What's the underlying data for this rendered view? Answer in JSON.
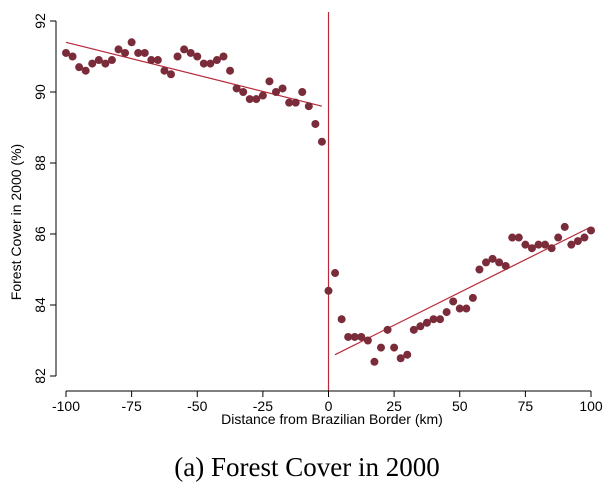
{
  "caption": "(a) Forest Cover in 2000",
  "chart_data": {
    "type": "scatter",
    "title": "",
    "xlabel": "Distance from Brazilian Border (km)",
    "ylabel": "Forest Cover in 2000 (%)",
    "xlim": [
      -100,
      100
    ],
    "ylim": [
      82,
      92
    ],
    "x_ticks": [
      -100,
      -75,
      -50,
      -25,
      0,
      25,
      50,
      75,
      100
    ],
    "y_ticks": [
      82,
      84,
      86,
      88,
      90,
      92
    ],
    "x_tick_labels": [
      "-100",
      "-75",
      "-50",
      "-25",
      "0",
      "25",
      "50",
      "75",
      "100"
    ],
    "y_tick_labels": [
      "82",
      "84",
      "86",
      "88",
      "90",
      "92"
    ],
    "grid": false,
    "colors": {
      "points": "#7b2c3a",
      "lines": "#b8293a",
      "cutoff": "#b8293a",
      "axis": "#000000"
    },
    "cutoff_x": 0,
    "series": [
      {
        "points": [
          [
            -100,
            91.1
          ],
          [
            -97.5,
            91.0
          ],
          [
            -95,
            90.7
          ],
          [
            -92.5,
            90.6
          ],
          [
            -90,
            90.8
          ],
          [
            -87.5,
            90.9
          ],
          [
            -85,
            90.8
          ],
          [
            -82.5,
            90.9
          ],
          [
            -80,
            91.2
          ],
          [
            -77.5,
            91.1
          ],
          [
            -75,
            91.4
          ],
          [
            -72.5,
            91.1
          ],
          [
            -70,
            91.1
          ],
          [
            -67.5,
            90.9
          ],
          [
            -65,
            90.9
          ],
          [
            -62.5,
            90.6
          ],
          [
            -60,
            90.5
          ],
          [
            -57.5,
            91.0
          ],
          [
            -55,
            91.2
          ],
          [
            -52.5,
            91.1
          ],
          [
            -50,
            91.0
          ],
          [
            -47.5,
            90.8
          ],
          [
            -45,
            90.8
          ],
          [
            -42.5,
            90.9
          ],
          [
            -40,
            91.0
          ],
          [
            -37.5,
            90.6
          ],
          [
            -35,
            90.1
          ],
          [
            -32.5,
            90.0
          ],
          [
            -30,
            89.8
          ],
          [
            -27.5,
            89.8
          ],
          [
            -25,
            89.9
          ],
          [
            -22.5,
            90.3
          ],
          [
            -20,
            90.0
          ],
          [
            -17.5,
            90.1
          ],
          [
            -15,
            89.7
          ],
          [
            -12.5,
            89.7
          ],
          [
            -10,
            90.0
          ],
          [
            -7.5,
            89.6
          ],
          [
            -5,
            89.1
          ],
          [
            -2.5,
            88.6
          ]
        ]
      },
      {
        "points": [
          [
            0,
            84.4
          ],
          [
            2.5,
            84.9
          ],
          [
            5,
            83.6
          ],
          [
            7.5,
            83.1
          ],
          [
            10,
            83.1
          ],
          [
            12.5,
            83.1
          ],
          [
            15,
            83.0
          ],
          [
            17.5,
            82.4
          ],
          [
            20,
            82.8
          ],
          [
            22.5,
            83.3
          ],
          [
            25,
            82.8
          ],
          [
            27.5,
            82.5
          ],
          [
            30,
            82.6
          ],
          [
            32.5,
            83.3
          ],
          [
            35,
            83.4
          ],
          [
            37.5,
            83.5
          ],
          [
            40,
            83.6
          ],
          [
            42.5,
            83.6
          ],
          [
            45,
            83.8
          ],
          [
            47.5,
            84.1
          ],
          [
            50,
            83.9
          ],
          [
            52.5,
            83.9
          ],
          [
            55,
            84.2
          ],
          [
            57.5,
            85.0
          ],
          [
            60,
            85.2
          ],
          [
            62.5,
            85.3
          ],
          [
            65,
            85.2
          ],
          [
            67.5,
            85.1
          ],
          [
            70,
            85.9
          ],
          [
            72.5,
            85.9
          ],
          [
            75,
            85.7
          ],
          [
            77.5,
            85.6
          ],
          [
            80,
            85.7
          ],
          [
            82.5,
            85.7
          ],
          [
            85,
            85.6
          ],
          [
            87.5,
            85.9
          ],
          [
            90,
            86.2
          ],
          [
            92.5,
            85.7
          ],
          [
            95,
            85.8
          ],
          [
            97.5,
            85.9
          ],
          [
            100,
            86.1
          ]
        ]
      }
    ],
    "fit_lines": [
      {
        "x": [
          -100,
          -2.5
        ],
        "y": [
          91.4,
          89.6
        ]
      },
      {
        "x": [
          2.5,
          100
        ],
        "y": [
          82.6,
          86.2
        ]
      }
    ]
  }
}
